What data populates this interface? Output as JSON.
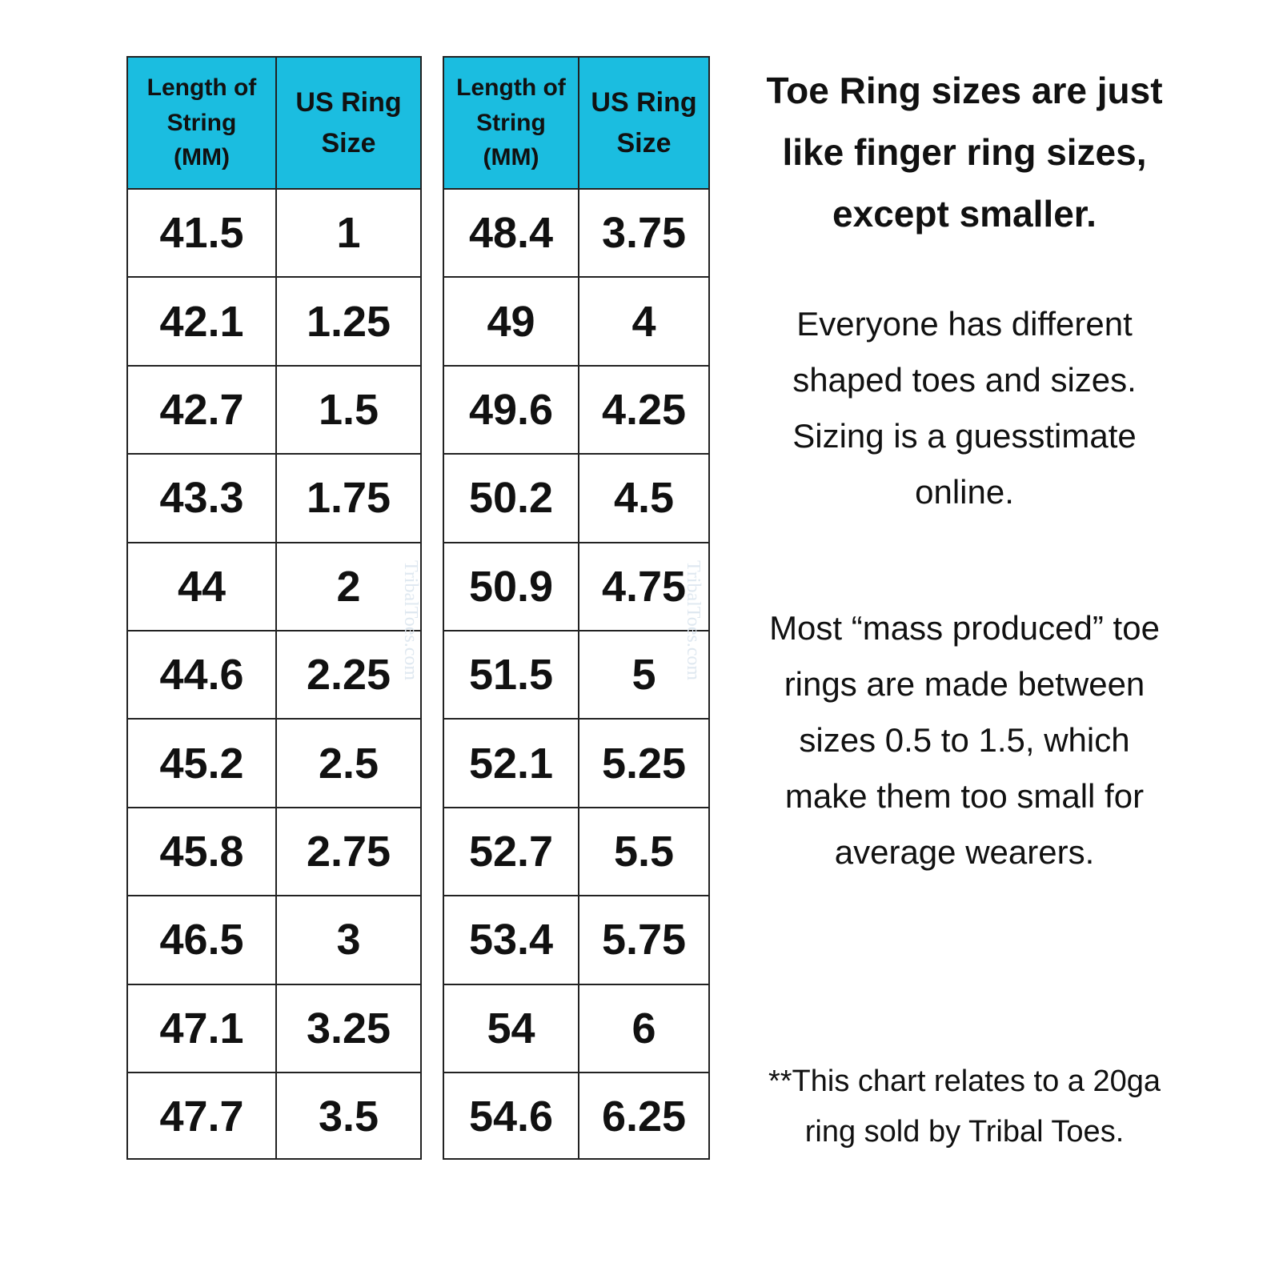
{
  "tables": [
    {
      "header": [
        [
          "Length of",
          "String",
          "(MM)"
        ],
        [
          "US Ring",
          "Size"
        ]
      ],
      "rows": [
        [
          41.5,
          1
        ],
        [
          42.1,
          1.25
        ],
        [
          42.7,
          1.5
        ],
        [
          43.3,
          1.75
        ],
        [
          44,
          2
        ],
        [
          44.6,
          2.25
        ],
        [
          45.2,
          2.5
        ],
        [
          45.8,
          2.75
        ],
        [
          46.5,
          3
        ],
        [
          47.1,
          3.25
        ],
        [
          47.7,
          3.5
        ]
      ]
    },
    {
      "header": [
        [
          "Length of",
          "String",
          "(MM)"
        ],
        [
          "US Ring",
          "Size"
        ]
      ],
      "rows": [
        [
          48.4,
          3.75
        ],
        [
          49,
          4
        ],
        [
          49.6,
          4.25
        ],
        [
          50.2,
          4.5
        ],
        [
          50.9,
          4.75
        ],
        [
          51.5,
          5
        ],
        [
          52.1,
          5.25
        ],
        [
          52.7,
          5.5
        ],
        [
          53.4,
          5.75
        ],
        [
          54,
          6
        ],
        [
          54.6,
          6.25
        ]
      ]
    }
  ],
  "watermark": "TribalToes.com",
  "notes": [
    [
      "Toe Ring sizes are just",
      "like finger ring sizes,",
      "except smaller."
    ],
    [
      "Everyone has different",
      "shaped toes and sizes.",
      "Sizing is a guesstimate",
      "online."
    ],
    [
      "Most “mass produced” toe",
      "rings are made between",
      "sizes 0.5 to 1.5, which",
      "make them too small for",
      "average wearers."
    ],
    [
      "**This chart relates to a 20ga",
      "ring sold by Tribal Toes."
    ]
  ]
}
